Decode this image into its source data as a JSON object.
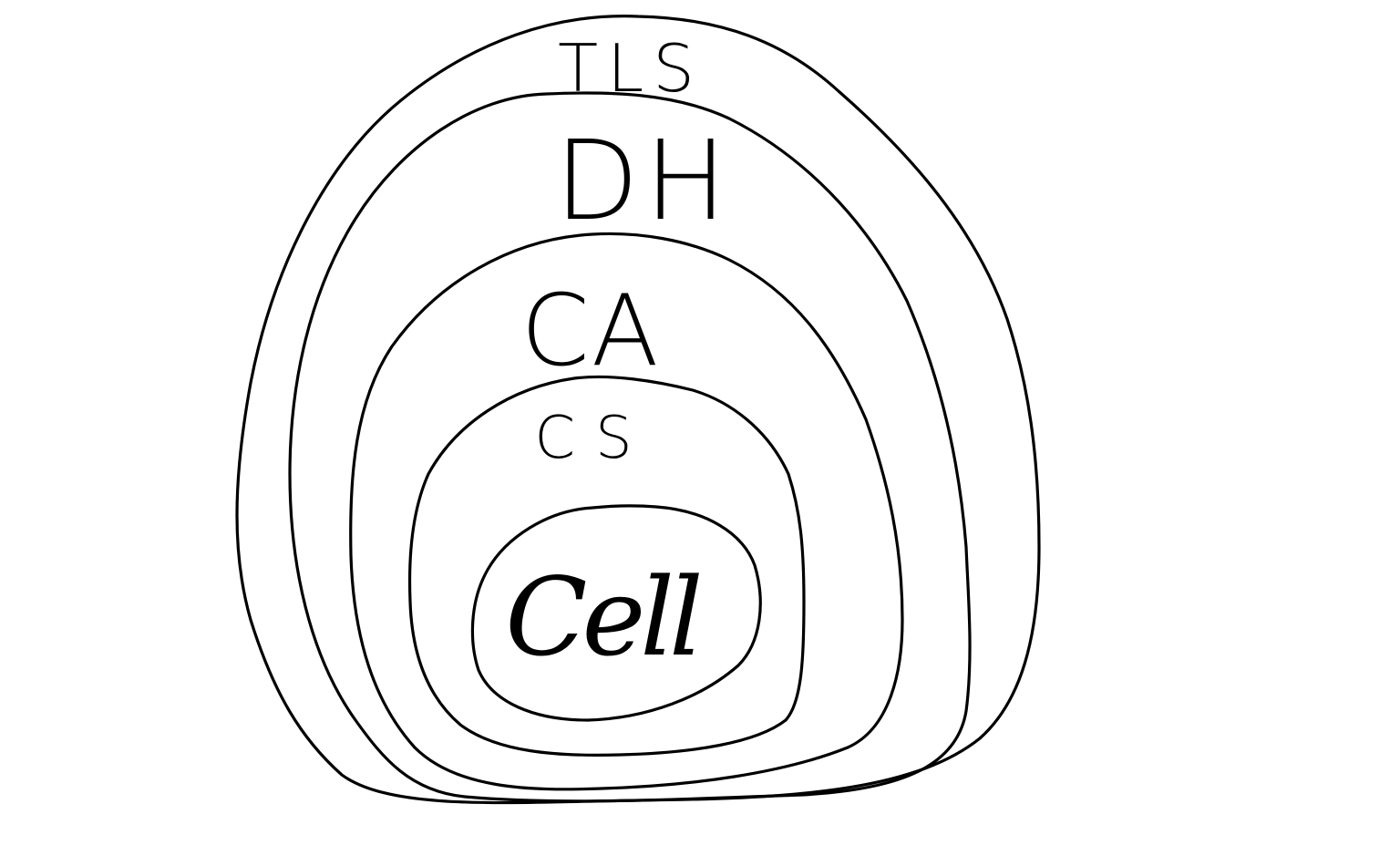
{
  "diagram": {
    "type": "nested-layers-hand-drawn",
    "stroke_color": "#000000",
    "background_color": "#ffffff",
    "layers": [
      {
        "id": "tls",
        "label": "TLS"
      },
      {
        "id": "dh",
        "label": "DH"
      },
      {
        "id": "ca",
        "label": "CA"
      },
      {
        "id": "cs",
        "label": "CS"
      },
      {
        "id": "cell",
        "label": "Cell"
      }
    ]
  }
}
